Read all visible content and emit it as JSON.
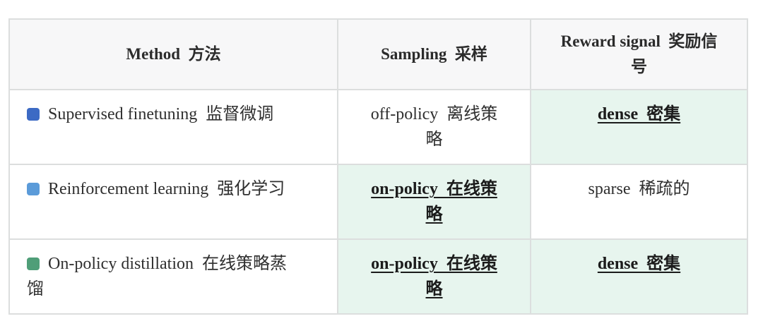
{
  "table": {
    "columns": [
      {
        "label": "Method  方法"
      },
      {
        "label": "Sampling  采样"
      },
      {
        "label": "Reward signal  奖励信\n号"
      }
    ],
    "rows": [
      {
        "method": {
          "text": "Supervised finetuning  监督微调",
          "marker_color": "#3c6ac4"
        },
        "sampling": {
          "text": "off-policy  离线策\n略",
          "highlight": false
        },
        "reward": {
          "text": "dense  密集",
          "highlight": true
        }
      },
      {
        "method": {
          "text": "Reinforcement learning  强化学习",
          "marker_color": "#5b9bd9"
        },
        "sampling": {
          "text": "on-policy  在线策\n略",
          "highlight": true
        },
        "reward": {
          "text": "sparse  稀疏的",
          "highlight": false
        }
      },
      {
        "method": {
          "text": "On-policy distillation  在线策略蒸\n馏",
          "marker_color": "#4f9e78"
        },
        "sampling": {
          "text": "on-policy  在线策\n略",
          "highlight": true
        },
        "reward": {
          "text": "dense  密集",
          "highlight": true
        }
      }
    ],
    "colors": {
      "header_bg": "#f7f7f8",
      "highlight_bg": "#e7f5ee",
      "border": "#dcdede",
      "marker_blue": "#3c6ac4",
      "marker_light_blue": "#5b9bd9",
      "marker_green": "#4f9e78"
    }
  }
}
